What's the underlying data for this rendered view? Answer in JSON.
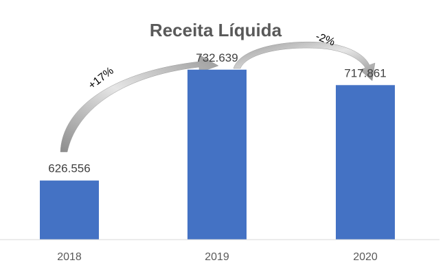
{
  "chart_data": {
    "type": "bar",
    "title": "Receita Líquida",
    "categories": [
      "2018",
      "2019",
      "2020"
    ],
    "values": [
      626556,
      732639,
      717861
    ],
    "value_labels": [
      "626.556",
      "732.639",
      "717.861"
    ],
    "ylim": [
      570000,
      760000
    ],
    "grid": false,
    "legend": "none",
    "bar_color": "#4472C4",
    "annotations": [
      {
        "text": "+17%",
        "from_category": "2018",
        "to_category": "2019"
      },
      {
        "text": "-2%",
        "from_category": "2019",
        "to_category": "2020"
      }
    ],
    "arrow_color": "#A6A6A6",
    "axis_color": "#D9D9D9"
  }
}
